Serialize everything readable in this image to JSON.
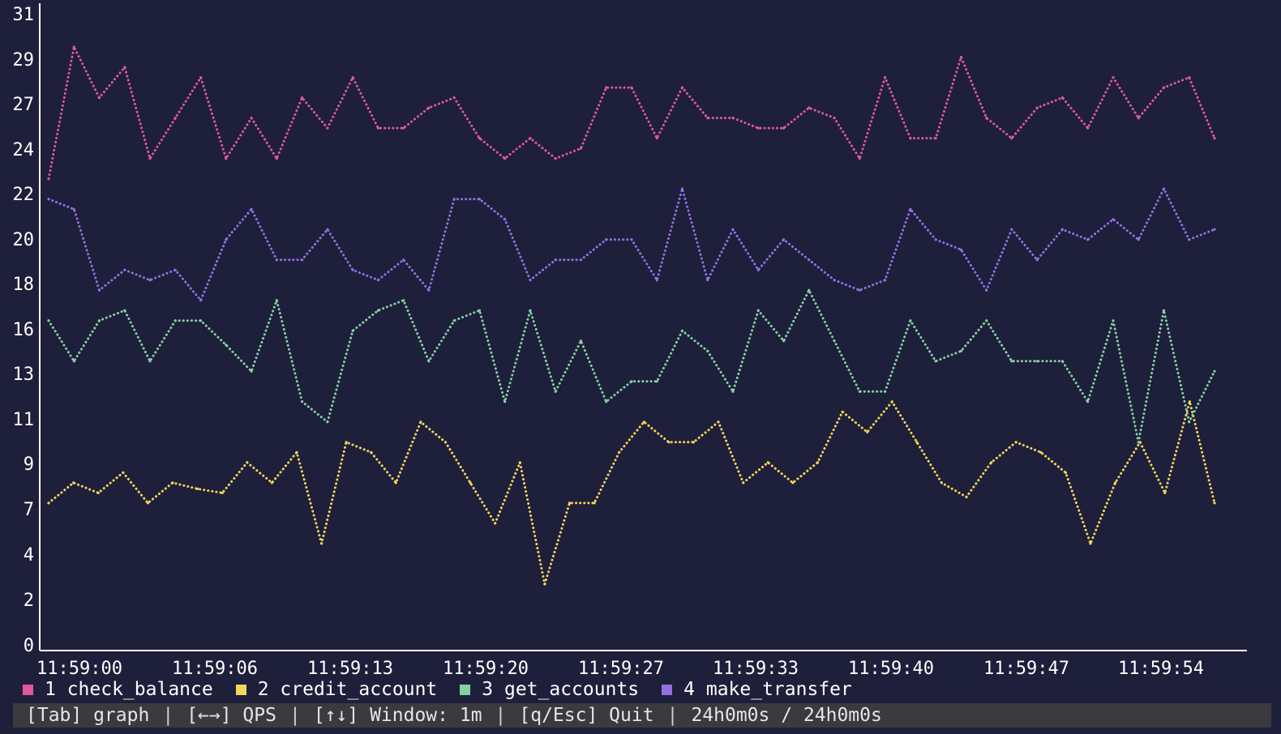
{
  "chart_data": {
    "type": "line",
    "render_style": "braille-dotted",
    "y_ticks": [
      "0",
      "2",
      "4",
      "7",
      "9",
      "11",
      "13",
      "16",
      "18",
      "20",
      "22",
      "24",
      "27",
      "29",
      "31"
    ],
    "x_ticks": [
      "11:59:00",
      "11:59:06",
      "11:59:13",
      "11:59:20",
      "11:59:27",
      "11:59:33",
      "11:59:40",
      "11:59:47",
      "11:59:54"
    ],
    "ylim": [
      0,
      31.5
    ],
    "x_seconds": [
      0,
      1,
      2,
      3,
      4,
      5,
      6,
      7,
      8,
      9,
      10,
      11,
      12,
      13,
      14,
      15,
      16,
      17,
      18,
      19,
      20,
      21,
      22,
      23,
      24,
      25,
      26,
      27,
      28,
      29,
      30,
      31,
      32,
      33,
      34,
      35,
      36,
      37,
      38,
      39,
      40,
      41,
      42,
      43,
      44,
      45,
      46,
      47,
      48,
      49,
      50,
      51,
      52,
      53,
      54,
      55,
      56,
      57
    ],
    "series": [
      {
        "name": "1 check_balance",
        "color": "#e0589e",
        "values": [
          23,
          29.5,
          27,
          28.5,
          24,
          26,
          28,
          24,
          26,
          24,
          27,
          25.5,
          28,
          25.5,
          25.5,
          26.5,
          27,
          25,
          24,
          25,
          24,
          24.5,
          27.5,
          27.5,
          25,
          27.5,
          26,
          26,
          25.5,
          25.5,
          26.5,
          26,
          24,
          28,
          25,
          25,
          29,
          26,
          25,
          26.5,
          27,
          25.5,
          28,
          26,
          27.5,
          28,
          25
        ]
      },
      {
        "name": "2 credit_account",
        "color": "#f3d65a",
        "values": [
          7,
          8,
          7.5,
          8.5,
          7,
          8,
          7.7,
          7.5,
          9,
          8,
          9.5,
          5,
          10,
          9.5,
          8,
          11,
          10,
          8,
          6,
          9,
          3,
          7,
          7,
          9.5,
          11,
          10,
          10,
          11,
          8,
          9,
          8,
          9,
          11.5,
          10.5,
          12,
          10,
          8,
          7.3,
          9,
          10,
          9.5,
          8.5,
          5,
          8,
          10,
          7.5,
          12,
          7
        ]
      },
      {
        "name": "3 get_accounts",
        "color": "#86d1a2",
        "values": [
          16,
          14,
          16,
          16.5,
          14,
          16,
          16,
          14.8,
          13.5,
          17,
          12,
          11,
          15.5,
          16.5,
          17,
          14,
          16,
          16.5,
          12,
          16.5,
          12.5,
          15,
          12,
          13,
          13,
          15.5,
          14.5,
          12.5,
          16.5,
          15,
          17.5,
          15,
          12.5,
          12.5,
          16,
          14,
          14.5,
          16,
          14,
          14,
          14,
          12,
          16,
          10,
          16.5,
          11,
          13.5
        ]
      },
      {
        "name": "4 make_transfer",
        "color": "#9470e0",
        "values": [
          22,
          21.5,
          17.5,
          18.5,
          18,
          18.5,
          17,
          20,
          21.5,
          19,
          19,
          20.5,
          18.5,
          18,
          19,
          17.5,
          22,
          22,
          21,
          18,
          19,
          19,
          20,
          20,
          18,
          22.5,
          18,
          20.5,
          18.5,
          20,
          19,
          18,
          17.5,
          18,
          21.5,
          20,
          19.5,
          17.5,
          20.5,
          19,
          20.5,
          20,
          21,
          20,
          22.5,
          20,
          20.5
        ]
      }
    ]
  },
  "legend": [
    {
      "label": "1 check_balance",
      "color": "#e0589e"
    },
    {
      "label": "2 credit_account",
      "color": "#f3d65a"
    },
    {
      "label": "3 get_accounts",
      "color": "#86d1a2"
    },
    {
      "label": "4 make_transfer",
      "color": "#9470e0"
    }
  ],
  "statusbar": {
    "tab": "[Tab] graph",
    "qps": "[←→] QPS",
    "window": "[↑↓] Window: 1m",
    "quit": "[q/Esc] Quit",
    "time": "24h0m0s / 24h0m0s",
    "separator": "|"
  }
}
